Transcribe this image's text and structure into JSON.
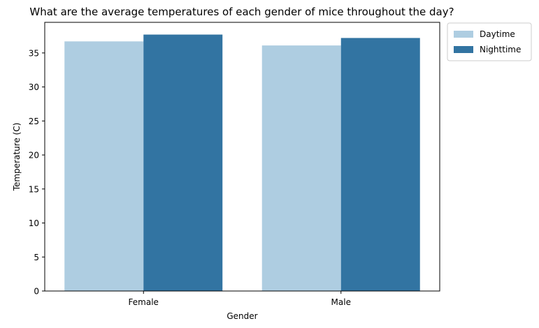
{
  "chart_data": {
    "type": "bar",
    "title": "What are the average temperatures of each gender of mice throughout the day?",
    "xlabel": "Gender",
    "ylabel": "Temperature (C)",
    "categories": [
      "Female",
      "Male"
    ],
    "series": [
      {
        "name": "Daytime",
        "values": [
          36.7,
          36.1
        ],
        "color": "#aecde1"
      },
      {
        "name": "Nighttime",
        "values": [
          37.7,
          37.2
        ],
        "color": "#3274a2"
      }
    ],
    "ylim": [
      0,
      39.5
    ],
    "yticks": [
      "0",
      "5",
      "10",
      "15",
      "20",
      "25",
      "30",
      "35"
    ],
    "grid": false,
    "legend_position": "outside-top-right"
  }
}
